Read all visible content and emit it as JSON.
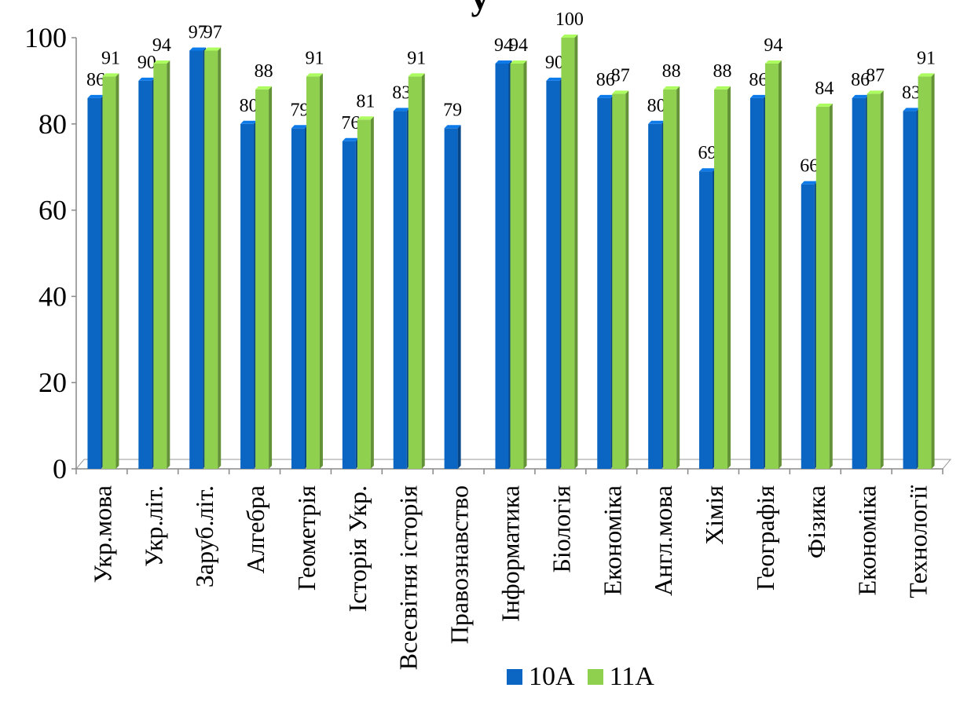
{
  "chart_data": {
    "type": "bar",
    "title": "у",
    "categories": [
      "Укр.мова",
      "Укр.літ.",
      "Заруб.літ.",
      "Алгебра",
      "Геометрія",
      "Історія Укр.",
      "Всесвітня історія",
      "Правознавство",
      "Інформатика",
      "Біологія",
      "Економіка",
      "Англ.мова",
      "Хімія",
      "Географія",
      "Фізика",
      "Економіка",
      "Технології"
    ],
    "series": [
      {
        "name": "10А",
        "color": "#0a66c2",
        "values": [
          86,
          90,
          97,
          80,
          79,
          76,
          83,
          79,
          94,
          90,
          86,
          80,
          69,
          86,
          66,
          86,
          83
        ]
      },
      {
        "name": "11А",
        "color": "#8fd14f",
        "values": [
          91,
          94,
          97,
          88,
          91,
          81,
          91,
          null,
          94,
          100,
          87,
          88,
          88,
          94,
          84,
          87,
          91
        ]
      }
    ],
    "ylim": [
      0,
      100
    ],
    "yticks": [
      0,
      20,
      40,
      60,
      80,
      100
    ],
    "grid": false,
    "legend": "bottom",
    "data_labels": true
  }
}
